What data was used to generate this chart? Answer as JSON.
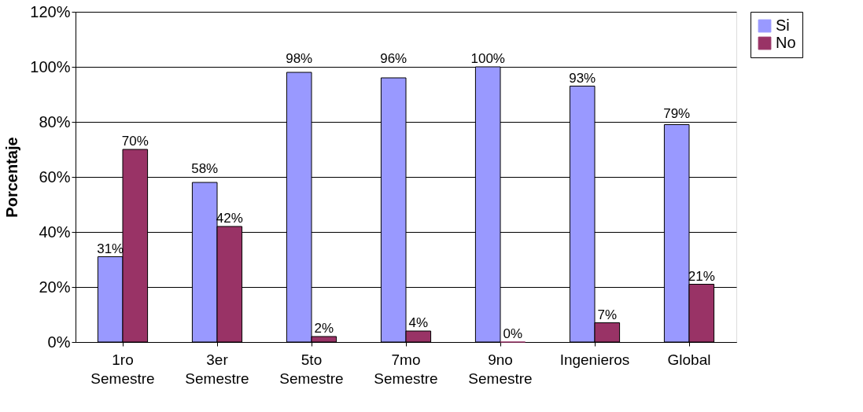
{
  "chart_data": {
    "type": "bar",
    "ylabel": "Porcentaje",
    "categories": [
      "1ro Semestre",
      "3er Semestre",
      "5to Semestre",
      "7mo Semestre",
      "9no Semestre",
      "Ingenieros",
      "Global"
    ],
    "series": [
      {
        "name": "Si",
        "color": "#9999ff",
        "values": [
          31,
          58,
          98,
          96,
          100,
          93,
          79
        ],
        "value_labels": [
          "31%",
          "58%",
          "98%",
          "96%",
          "100%",
          "93%",
          "79%"
        ]
      },
      {
        "name": "No",
        "color": "#993366",
        "values": [
          70,
          42,
          2,
          4,
          0,
          7,
          21
        ],
        "value_labels": [
          "70%",
          "42%",
          "2%",
          "4%",
          "0%",
          "7%",
          "21%"
        ]
      }
    ],
    "ylim": [
      0,
      120
    ],
    "yticks": [
      {
        "value": 0,
        "label": "0%"
      },
      {
        "value": 20,
        "label": "20%"
      },
      {
        "value": 40,
        "label": "40%"
      },
      {
        "value": 60,
        "label": "60%"
      },
      {
        "value": 80,
        "label": "80%"
      },
      {
        "value": 100,
        "label": "100%"
      },
      {
        "value": 120,
        "label": "120%"
      }
    ],
    "grid": "y",
    "legend": "right"
  }
}
